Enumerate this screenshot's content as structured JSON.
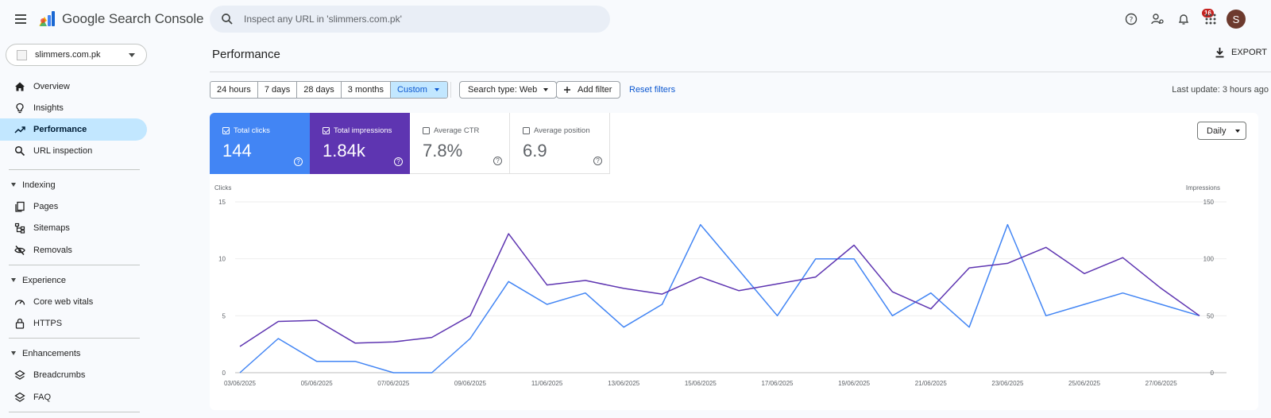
{
  "app": {
    "title": "Google Search Console"
  },
  "search": {
    "placeholder": "Inspect any URL in 'slimmers.com.pk'"
  },
  "topbar": {
    "notification_count": "16",
    "avatar_initial": "S",
    "icons": [
      "help-icon",
      "manage-users-icon",
      "notifications-icon",
      "apps-icon"
    ]
  },
  "property": {
    "name": "slimmers.com.pk"
  },
  "sidebar": {
    "items": [
      {
        "label": "Overview",
        "icon": "home-icon"
      },
      {
        "label": "Insights",
        "icon": "lightbulb-icon"
      },
      {
        "label": "Performance",
        "icon": "trending-up-icon",
        "active": true
      },
      {
        "label": "URL inspection",
        "icon": "search-icon"
      }
    ],
    "indexing": {
      "label": "Indexing",
      "items": [
        {
          "label": "Pages",
          "icon": "pages-icon"
        },
        {
          "label": "Sitemaps",
          "icon": "sitemap-icon"
        },
        {
          "label": "Removals",
          "icon": "visibility-off-icon"
        }
      ]
    },
    "experience": {
      "label": "Experience",
      "items": [
        {
          "label": "Core web vitals",
          "icon": "speed-icon"
        },
        {
          "label": "HTTPS",
          "icon": "lock-icon"
        }
      ]
    },
    "enhancements": {
      "label": "Enhancements",
      "items": [
        {
          "label": "Breadcrumbs",
          "icon": "layers-icon"
        },
        {
          "label": "FAQ",
          "icon": "layers-icon"
        }
      ]
    }
  },
  "main": {
    "title": "Performance",
    "export_label": "EXPORT",
    "date_ranges": [
      "24 hours",
      "7 days",
      "28 days",
      "3 months"
    ],
    "date_selected": "Custom",
    "search_type": "Search type: Web",
    "add_filter": "Add filter",
    "reset_filters": "Reset filters",
    "last_update": "Last update: 3 hours ago",
    "granularity": "Daily"
  },
  "metrics": {
    "clicks": {
      "label": "Total clicks",
      "value": "144",
      "checked": true,
      "color": "#4285f4"
    },
    "impressions": {
      "label": "Total impressions",
      "value": "1.84k",
      "checked": true,
      "color": "#5e35b1"
    },
    "ctr": {
      "label": "Average CTR",
      "value": "7.8%",
      "checked": false
    },
    "position": {
      "label": "Average position",
      "value": "6.9",
      "checked": false
    }
  },
  "chart_data": {
    "type": "line",
    "left_axis_label": "Clicks",
    "right_axis_label": "Impressions",
    "ylim_left": [
      0,
      15
    ],
    "ylim_right": [
      0,
      150
    ],
    "yticks_left": [
      0,
      5,
      10,
      15
    ],
    "yticks_right": [
      0,
      50,
      100,
      150
    ],
    "x": [
      "03/06/2025",
      "04/06/2025",
      "05/06/2025",
      "06/06/2025",
      "07/06/2025",
      "08/06/2025",
      "09/06/2025",
      "10/06/2025",
      "11/06/2025",
      "12/06/2025",
      "13/06/2025",
      "14/06/2025",
      "15/06/2025",
      "16/06/2025",
      "17/06/2025",
      "18/06/2025",
      "19/06/2025",
      "20/06/2025",
      "21/06/2025",
      "22/06/2025",
      "23/06/2025",
      "24/06/2025",
      "25/06/2025",
      "26/06/2025",
      "27/06/2025",
      "28/06/2025"
    ],
    "x_tick_labels": [
      "03/06/2025",
      "05/06/2025",
      "07/06/2025",
      "09/06/2025",
      "11/06/2025",
      "13/06/2025",
      "15/06/2025",
      "17/06/2025",
      "19/06/2025",
      "21/06/2025",
      "23/06/2025",
      "25/06/2025",
      "27/06/2025"
    ],
    "series": [
      {
        "name": "Clicks",
        "axis": "left",
        "color": "#4285f4",
        "values": [
          0,
          3,
          1,
          1,
          0,
          0,
          3,
          8,
          6,
          7,
          4,
          6,
          13,
          9,
          5,
          10,
          10,
          5,
          7,
          4,
          13,
          5,
          6,
          7,
          6,
          5
        ]
      },
      {
        "name": "Impressions",
        "axis": "right",
        "color": "#5e35b1",
        "values": [
          23,
          45,
          46,
          26,
          27,
          31,
          50,
          122,
          77,
          81,
          74,
          69,
          84,
          72,
          78,
          84,
          112,
          71,
          56,
          92,
          96,
          110,
          87,
          101,
          74,
          50
        ]
      }
    ]
  }
}
